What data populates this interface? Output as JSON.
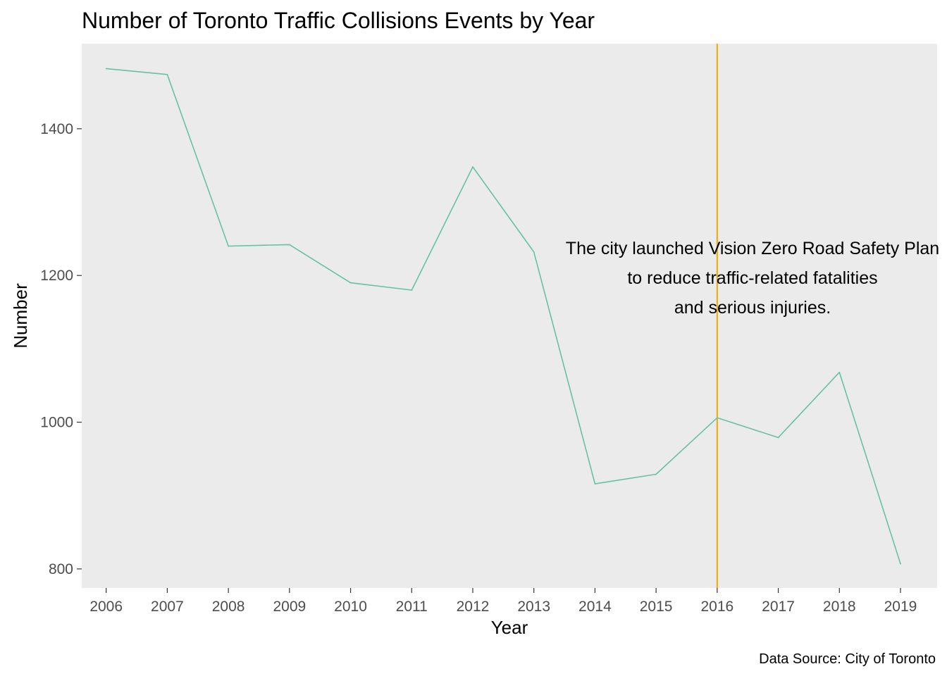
{
  "chart_data": {
    "type": "line",
    "title": "Number of Toronto Traffic Collisions Events by Year",
    "xlabel": "Year",
    "ylabel": "Number",
    "caption": "Data Source: City of Toronto",
    "x": [
      2006,
      2007,
      2008,
      2009,
      2010,
      2011,
      2012,
      2013,
      2014,
      2015,
      2016,
      2017,
      2018,
      2019
    ],
    "series": [
      {
        "values": [
          1482,
          1474,
          1240,
          1242,
          1190,
          1180,
          1348,
          1232,
          916,
          929,
          1006,
          979,
          1068,
          807
        ],
        "color": "#66c2a5"
      }
    ],
    "yticks": [
      800,
      1000,
      1200,
      1400
    ],
    "ylim": [
      774,
      1516
    ],
    "xlim": [
      2005.6,
      2019.6
    ],
    "vline": {
      "x": 2016,
      "color": "#f2a900"
    },
    "annotation": {
      "lines": [
        "The city launched Vision Zero Road Safety Plan",
        "to reduce traffic-related fatalities",
        "and serious injuries."
      ]
    },
    "background": "#ebebeb",
    "grid": false,
    "legend": "none"
  }
}
